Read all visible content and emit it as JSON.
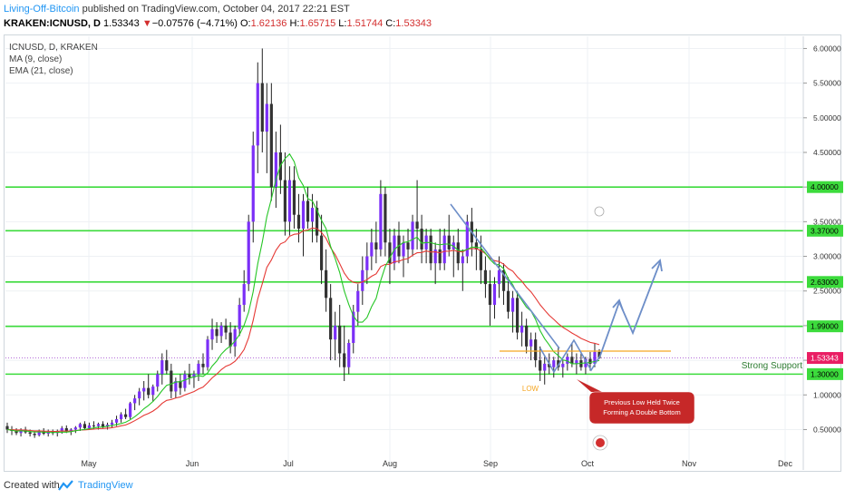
{
  "header": {
    "author": "Living-Off-Bitcoin",
    "published_text": "published on TradingView.com, October 04, 2017 22:21 EST",
    "symbol": "KRAKEN:ICNUSD, D",
    "price": "1.53343",
    "change_arrow": "▼",
    "change": "−0.07576 (−4.71%)",
    "o_label": "O:",
    "o_value": "1.62136",
    "h_label": "H:",
    "h_value": "1.65715",
    "l_label": "L:",
    "l_value": "1.51744",
    "c_label": "C:",
    "c_value": "1.53343"
  },
  "legend": {
    "title": "ICNUSD, D, KRAKEN",
    "ma": "MA (9, close)",
    "ema": "EMA (21, close)"
  },
  "footer": {
    "created_with": "Created with",
    "brand": "TradingView"
  },
  "colors": {
    "bull": "#7b2ff7",
    "bear": "#333333",
    "ma": "#26c626",
    "ema": "#e53935",
    "level": "#3cdb3c",
    "forecast": "#6d8ec8",
    "callout": "#c62828"
  },
  "chart_data": {
    "type": "candlestick",
    "title": "ICNUSD, D, KRAKEN",
    "x_tick_labels": [
      "May",
      "Jun",
      "Jul",
      "Aug",
      "Sep",
      "Oct",
      "Nov",
      "Dec"
    ],
    "y_tick_labels": [
      "0.50000",
      "1.00000",
      "1.50000",
      "2.00000",
      "2.50000",
      "3.00000",
      "3.50000",
      "4.00000",
      "4.50000",
      "5.00000",
      "5.50000",
      "6.00000"
    ],
    "ylim": [
      0.1,
      6.25
    ],
    "horizontal_levels": [
      {
        "value": 4.0,
        "label": "4.00000"
      },
      {
        "value": 3.37,
        "label": "3.37000"
      },
      {
        "value": 2.63,
        "label": "2.63000"
      },
      {
        "value": 1.99,
        "label": "1.99000"
      },
      {
        "value": 1.3,
        "label": "1.30000"
      }
    ],
    "current_price": {
      "value": 1.53343,
      "label": "1.53343"
    },
    "annotations": {
      "support_text": "Strong Support",
      "low_text": "LOW",
      "callout_text": [
        "Previous Low Held Twice",
        "Forming A Double Bottom"
      ]
    },
    "ohlc_series": [
      [
        0.55,
        0.6,
        0.45,
        0.5
      ],
      [
        0.5,
        0.55,
        0.42,
        0.48
      ],
      [
        0.48,
        0.52,
        0.42,
        0.45
      ],
      [
        0.45,
        0.52,
        0.4,
        0.5
      ],
      [
        0.5,
        0.54,
        0.44,
        0.46
      ],
      [
        0.46,
        0.5,
        0.4,
        0.44
      ],
      [
        0.44,
        0.48,
        0.38,
        0.42
      ],
      [
        0.42,
        0.5,
        0.4,
        0.48
      ],
      [
        0.48,
        0.52,
        0.42,
        0.44
      ],
      [
        0.44,
        0.5,
        0.4,
        0.47
      ],
      [
        0.47,
        0.5,
        0.42,
        0.45
      ],
      [
        0.45,
        0.5,
        0.4,
        0.48
      ],
      [
        0.48,
        0.55,
        0.44,
        0.52
      ],
      [
        0.52,
        0.56,
        0.45,
        0.47
      ],
      [
        0.47,
        0.52,
        0.42,
        0.5
      ],
      [
        0.5,
        0.55,
        0.45,
        0.53
      ],
      [
        0.53,
        0.6,
        0.48,
        0.58
      ],
      [
        0.58,
        0.62,
        0.5,
        0.52
      ],
      [
        0.52,
        0.6,
        0.5,
        0.56
      ],
      [
        0.56,
        0.62,
        0.5,
        0.55
      ],
      [
        0.55,
        0.6,
        0.5,
        0.58
      ],
      [
        0.58,
        0.62,
        0.52,
        0.54
      ],
      [
        0.54,
        0.6,
        0.5,
        0.57
      ],
      [
        0.57,
        0.64,
        0.52,
        0.6
      ],
      [
        0.6,
        0.7,
        0.55,
        0.65
      ],
      [
        0.65,
        0.75,
        0.6,
        0.72
      ],
      [
        0.72,
        0.8,
        0.65,
        0.68
      ],
      [
        0.68,
        0.9,
        0.65,
        0.88
      ],
      [
        0.88,
        1.0,
        0.78,
        0.95
      ],
      [
        0.95,
        1.1,
        0.85,
        1.05
      ],
      [
        1.05,
        1.2,
        0.92,
        1.1
      ],
      [
        1.1,
        1.3,
        0.95,
        1.0
      ],
      [
        1.0,
        1.15,
        0.9,
        1.12
      ],
      [
        1.12,
        1.35,
        1.05,
        1.3
      ],
      [
        1.3,
        1.6,
        1.15,
        1.5
      ],
      [
        1.5,
        1.65,
        1.3,
        1.35
      ],
      [
        1.35,
        1.45,
        0.95,
        1.05
      ],
      [
        1.05,
        1.25,
        0.95,
        1.2
      ],
      [
        1.2,
        1.3,
        1.0,
        1.1
      ],
      [
        1.1,
        1.35,
        1.05,
        1.3
      ],
      [
        1.3,
        1.45,
        1.15,
        1.25
      ],
      [
        1.25,
        1.35,
        1.1,
        1.3
      ],
      [
        1.3,
        1.5,
        1.2,
        1.45
      ],
      [
        1.45,
        1.6,
        1.3,
        1.4
      ],
      [
        1.4,
        1.85,
        1.35,
        1.8
      ],
      [
        1.8,
        2.1,
        1.65,
        1.95
      ],
      [
        1.95,
        2.05,
        1.75,
        1.85
      ],
      [
        1.85,
        2.05,
        1.75,
        2.0
      ],
      [
        2.0,
        2.1,
        1.8,
        1.9
      ],
      [
        1.9,
        2.05,
        1.6,
        1.7
      ],
      [
        1.7,
        2.0,
        1.55,
        1.95
      ],
      [
        1.95,
        2.4,
        1.85,
        2.3
      ],
      [
        2.3,
        2.8,
        2.2,
        2.6
      ],
      [
        2.6,
        3.6,
        2.5,
        3.5
      ],
      [
        3.5,
        4.8,
        3.2,
        4.6
      ],
      [
        4.6,
        5.8,
        4.2,
        5.5
      ],
      [
        5.5,
        6.0,
        4.5,
        4.8
      ],
      [
        4.8,
        5.5,
        4.2,
        5.2
      ],
      [
        5.2,
        5.5,
        3.8,
        4.0
      ],
      [
        4.0,
        4.8,
        3.7,
        4.5
      ],
      [
        4.5,
        4.9,
        3.9,
        4.1
      ],
      [
        4.1,
        4.5,
        3.3,
        3.5
      ],
      [
        3.5,
        4.3,
        3.3,
        4.1
      ],
      [
        4.1,
        4.3,
        3.4,
        3.6
      ],
      [
        3.6,
        3.9,
        3.2,
        3.4
      ],
      [
        3.4,
        3.9,
        3.0,
        3.8
      ],
      [
        3.8,
        4.0,
        3.4,
        3.5
      ],
      [
        3.5,
        3.9,
        3.2,
        3.7
      ],
      [
        3.7,
        3.8,
        3.2,
        3.3
      ],
      [
        3.3,
        3.6,
        2.6,
        2.8
      ],
      [
        2.8,
        3.1,
        2.2,
        2.4
      ],
      [
        2.4,
        2.6,
        1.5,
        1.8
      ],
      [
        1.8,
        2.2,
        1.5,
        2.0
      ],
      [
        2.0,
        2.3,
        1.4,
        1.6
      ],
      [
        1.6,
        2.0,
        1.2,
        1.4
      ],
      [
        1.4,
        1.8,
        1.3,
        1.75
      ],
      [
        1.75,
        2.3,
        1.6,
        2.2
      ],
      [
        2.2,
        2.6,
        2.0,
        2.5
      ],
      [
        2.5,
        3.0,
        2.3,
        2.8
      ],
      [
        2.8,
        3.2,
        2.6,
        3.0
      ],
      [
        3.0,
        3.4,
        2.8,
        3.2
      ],
      [
        3.2,
        3.5,
        2.9,
        3.1
      ],
      [
        3.1,
        4.1,
        3.0,
        3.9
      ],
      [
        3.9,
        4.0,
        3.0,
        3.2
      ],
      [
        3.2,
        3.4,
        2.6,
        2.9
      ],
      [
        2.9,
        3.4,
        2.8,
        3.3
      ],
      [
        3.3,
        3.5,
        2.9,
        3.0
      ],
      [
        3.0,
        3.3,
        2.7,
        3.2
      ],
      [
        3.2,
        3.4,
        2.9,
        3.1
      ],
      [
        3.1,
        3.6,
        3.0,
        3.5
      ],
      [
        3.5,
        4.1,
        3.1,
        3.4
      ],
      [
        3.4,
        3.6,
        2.9,
        3.1
      ],
      [
        3.1,
        3.4,
        2.9,
        3.3
      ],
      [
        3.3,
        3.4,
        2.8,
        2.9
      ],
      [
        2.9,
        3.2,
        2.6,
        3.1
      ],
      [
        3.1,
        3.4,
        2.8,
        2.9
      ],
      [
        2.9,
        3.4,
        2.8,
        3.3
      ],
      [
        3.3,
        3.6,
        3.0,
        3.1
      ],
      [
        3.1,
        3.3,
        2.7,
        3.2
      ],
      [
        3.2,
        3.4,
        2.8,
        2.9
      ],
      [
        2.9,
        3.1,
        2.5,
        3.0
      ],
      [
        3.0,
        3.6,
        2.9,
        3.5
      ],
      [
        3.5,
        3.7,
        3.0,
        3.2
      ],
      [
        3.2,
        3.4,
        2.8,
        3.1
      ],
      [
        3.1,
        3.3,
        2.6,
        2.8
      ],
      [
        2.8,
        3.0,
        2.4,
        2.6
      ],
      [
        2.6,
        2.8,
        2.0,
        2.3
      ],
      [
        2.3,
        2.7,
        2.1,
        2.6
      ],
      [
        2.6,
        3.0,
        2.4,
        2.8
      ],
      [
        2.8,
        2.9,
        2.3,
        2.5
      ],
      [
        2.5,
        2.7,
        2.1,
        2.2
      ],
      [
        2.2,
        2.5,
        1.9,
        2.4
      ],
      [
        2.4,
        2.5,
        1.8,
        1.9
      ],
      [
        1.9,
        2.2,
        1.7,
        2.0
      ],
      [
        2.0,
        2.1,
        1.6,
        1.7
      ],
      [
        1.7,
        1.9,
        1.5,
        1.8
      ],
      [
        1.8,
        1.9,
        1.4,
        1.5
      ],
      [
        1.5,
        1.7,
        1.2,
        1.35
      ],
      [
        1.35,
        1.55,
        1.15,
        1.45
      ],
      [
        1.45,
        1.6,
        1.3,
        1.4
      ],
      [
        1.4,
        1.55,
        1.25,
        1.5
      ],
      [
        1.5,
        1.7,
        1.35,
        1.4
      ],
      [
        1.4,
        1.5,
        1.25,
        1.45
      ],
      [
        1.45,
        1.6,
        1.35,
        1.55
      ],
      [
        1.55,
        1.75,
        1.4,
        1.45
      ],
      [
        1.45,
        1.6,
        1.3,
        1.5
      ],
      [
        1.5,
        1.6,
        1.35,
        1.4
      ],
      [
        1.4,
        1.55,
        1.3,
        1.52
      ],
      [
        1.52,
        1.62,
        1.35,
        1.45
      ],
      [
        1.45,
        1.75,
        1.4,
        1.62
      ],
      [
        1.62,
        1.66,
        1.52,
        1.53
      ]
    ]
  }
}
